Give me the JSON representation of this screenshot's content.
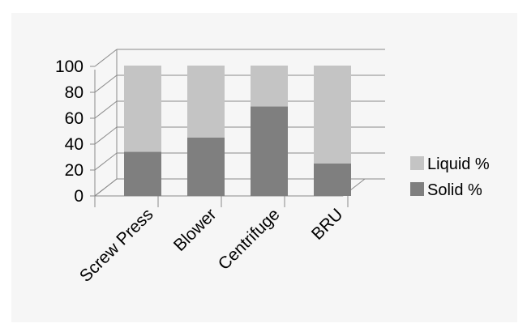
{
  "chart_data": {
    "type": "bar",
    "stacked": true,
    "style": "3d",
    "categories": [
      "Screw Press",
      "Blower",
      "Centrifuge",
      "BRU"
    ],
    "series": [
      {
        "name": "Solid %",
        "values": [
          34,
          45,
          69,
          25
        ],
        "color": "#7f7f7f"
      },
      {
        "name": "Liquid %",
        "values": [
          66,
          55,
          31,
          75
        ],
        "color": "#c4c4c4"
      }
    ],
    "yticks": [
      "0",
      "20",
      "40",
      "60",
      "80",
      "100"
    ],
    "ylim": [
      0,
      100
    ],
    "grid": true,
    "legend_position": "right",
    "title": "",
    "xlabel": "",
    "ylabel": ""
  }
}
